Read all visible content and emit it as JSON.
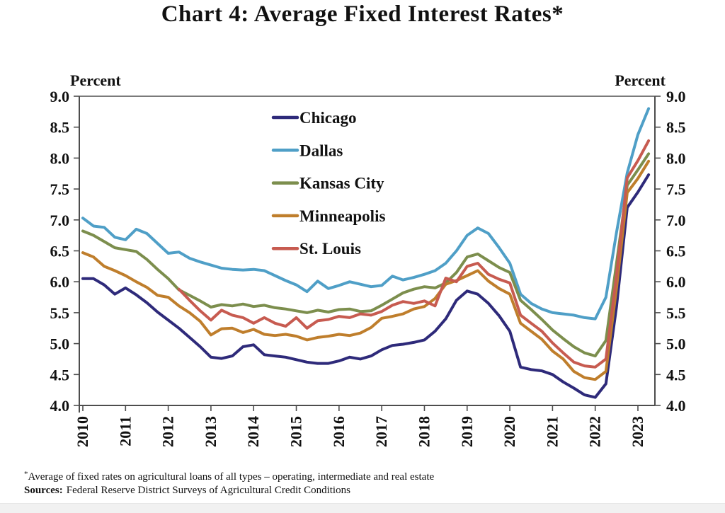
{
  "page": {
    "title": "Chart 4: Average Fixed Interest Rates*",
    "footnote_marker": "*",
    "footnote": "Average of fixed rates on agricultural loans of all types – operating, intermediate and real estate",
    "sources_label": "Sources:",
    "sources": "Federal Reserve District Surveys of Agricultural Credit Conditions"
  },
  "chart_data": {
    "type": "line",
    "title": "Chart 4: Average Fixed Interest Rates*",
    "ylabel_left": "Percent",
    "ylabel_right": "Percent",
    "ylim": [
      4.0,
      9.0
    ],
    "ytick_step": 0.5,
    "ytick_labels": [
      "4.0",
      "4.5",
      "5.0",
      "5.5",
      "6.0",
      "6.5",
      "7.0",
      "7.5",
      "8.0",
      "8.5",
      "9.0"
    ],
    "x_years": [
      "2010",
      "2011",
      "2012",
      "2013",
      "2014",
      "2015",
      "2016",
      "2017",
      "2018",
      "2019",
      "2020",
      "2021",
      "2022",
      "2023"
    ],
    "x_frequency": "quarterly",
    "x_start": 2010.0,
    "x_step": 0.25,
    "grid": false,
    "legend_position": "upper-left-inside",
    "axis_color": "#4d4d4d",
    "top_border_color": "#7a7a7a",
    "series": [
      {
        "name": "Chicago",
        "color": "#2e2a7a",
        "values": [
          6.05,
          6.05,
          5.95,
          5.8,
          5.9,
          5.79,
          5.66,
          5.51,
          5.38,
          5.25,
          5.1,
          4.95,
          4.78,
          4.76,
          4.8,
          4.95,
          4.98,
          4.82,
          4.8,
          4.78,
          4.74,
          4.7,
          4.68,
          4.68,
          4.72,
          4.78,
          4.75,
          4.8,
          4.9,
          4.97,
          4.99,
          5.02,
          5.06,
          5.2,
          5.4,
          5.7,
          5.85,
          5.8,
          5.65,
          5.45,
          5.2,
          4.62,
          4.58,
          4.56,
          4.5,
          4.38,
          4.28,
          4.17,
          4.13,
          4.35,
          5.6,
          7.2,
          7.45,
          7.73
        ]
      },
      {
        "name": "Dallas",
        "color": "#4f9fc7",
        "values": [
          7.03,
          6.9,
          6.88,
          6.72,
          6.68,
          6.85,
          6.78,
          6.62,
          6.46,
          6.48,
          6.38,
          6.32,
          6.27,
          6.22,
          6.2,
          6.19,
          6.2,
          6.18,
          6.1,
          6.02,
          5.95,
          5.84,
          6.01,
          5.89,
          5.94,
          6.0,
          5.96,
          5.92,
          5.94,
          6.09,
          6.03,
          6.07,
          6.12,
          6.18,
          6.3,
          6.5,
          6.75,
          6.87,
          6.78,
          6.55,
          6.3,
          5.8,
          5.65,
          5.56,
          5.5,
          5.48,
          5.46,
          5.42,
          5.4,
          5.75,
          6.8,
          7.76,
          8.38,
          8.8
        ]
      },
      {
        "name": "Kansas City",
        "color": "#7c8e4d",
        "values": [
          6.82,
          6.75,
          6.65,
          6.55,
          6.52,
          6.49,
          6.36,
          6.2,
          6.05,
          5.87,
          5.78,
          5.69,
          5.59,
          5.63,
          5.61,
          5.64,
          5.6,
          5.62,
          5.58,
          5.56,
          5.53,
          5.5,
          5.54,
          5.51,
          5.55,
          5.56,
          5.52,
          5.53,
          5.62,
          5.72,
          5.82,
          5.88,
          5.92,
          5.9,
          5.98,
          6.15,
          6.4,
          6.45,
          6.34,
          6.23,
          6.15,
          5.7,
          5.55,
          5.39,
          5.22,
          5.08,
          4.95,
          4.85,
          4.8,
          5.05,
          6.3,
          7.56,
          7.81,
          8.07
        ]
      },
      {
        "name": "Minneapolis",
        "color": "#bf7e2c",
        "values": [
          6.47,
          6.4,
          6.25,
          6.18,
          6.1,
          6.0,
          5.91,
          5.78,
          5.75,
          5.61,
          5.5,
          5.36,
          5.14,
          5.24,
          5.25,
          5.18,
          5.23,
          5.15,
          5.13,
          5.15,
          5.12,
          5.06,
          5.1,
          5.12,
          5.15,
          5.13,
          5.17,
          5.26,
          5.41,
          5.44,
          5.48,
          5.56,
          5.6,
          5.73,
          5.96,
          6.02,
          6.1,
          6.18,
          6.01,
          5.89,
          5.8,
          5.33,
          5.2,
          5.07,
          4.88,
          4.75,
          4.55,
          4.45,
          4.42,
          4.55,
          5.9,
          7.44,
          7.67,
          7.95
        ]
      },
      {
        "name": "St. Louis",
        "color": "#c75b50",
        "values": [
          null,
          null,
          null,
          null,
          null,
          null,
          null,
          null,
          null,
          5.88,
          5.7,
          5.53,
          5.38,
          5.54,
          5.46,
          5.42,
          5.33,
          5.42,
          5.33,
          5.28,
          5.42,
          5.25,
          5.37,
          5.39,
          5.44,
          5.42,
          5.48,
          5.46,
          5.52,
          5.62,
          5.68,
          5.65,
          5.69,
          5.61,
          6.06,
          6.0,
          6.25,
          6.3,
          6.12,
          6.04,
          5.98,
          5.46,
          5.33,
          5.2,
          5.01,
          4.85,
          4.7,
          4.64,
          4.62,
          4.75,
          6.1,
          7.68,
          7.96,
          8.28
        ]
      }
    ]
  }
}
